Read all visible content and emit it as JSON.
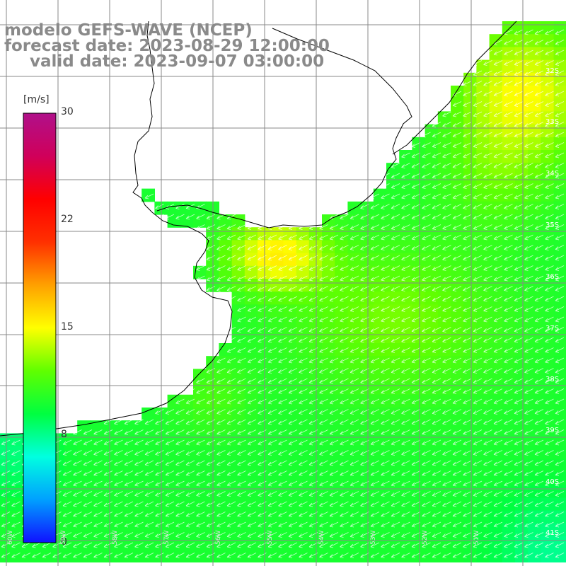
{
  "title": {
    "line1": "modelo GEFS-WAVE (NCEP)",
    "line2": "forecast date: 2023-08-29 12:00:00",
    "line3": "valid date: 2023-09-07 03:00:00"
  },
  "colorbar": {
    "unit": "[m/s]",
    "ticks": [
      "30",
      "22",
      "15",
      "8",
      "0"
    ],
    "tick_values": [
      30,
      22,
      15,
      8,
      0
    ],
    "range": [
      0,
      30
    ],
    "colors": [
      "#1010ff",
      "#00a0ff",
      "#00ffe0",
      "#00ff40",
      "#60ff00",
      "#ffff00",
      "#ffa000",
      "#ff3000",
      "#ff0000",
      "#d0005a",
      "#b0108a"
    ]
  },
  "map": {
    "latitude_labels": [
      "32S",
      "33S",
      "34S",
      "35S",
      "36S",
      "37S",
      "38S",
      "39S",
      "40S",
      "41S"
    ],
    "longitude_labels": [
      "60W",
      "59W",
      "58W",
      "57W",
      "56W",
      "55W",
      "54W",
      "53W",
      "52W",
      "51W"
    ],
    "land_color": "#ffffff",
    "grid_color": "#888888",
    "arrow_direction": "from east-northeast"
  }
}
